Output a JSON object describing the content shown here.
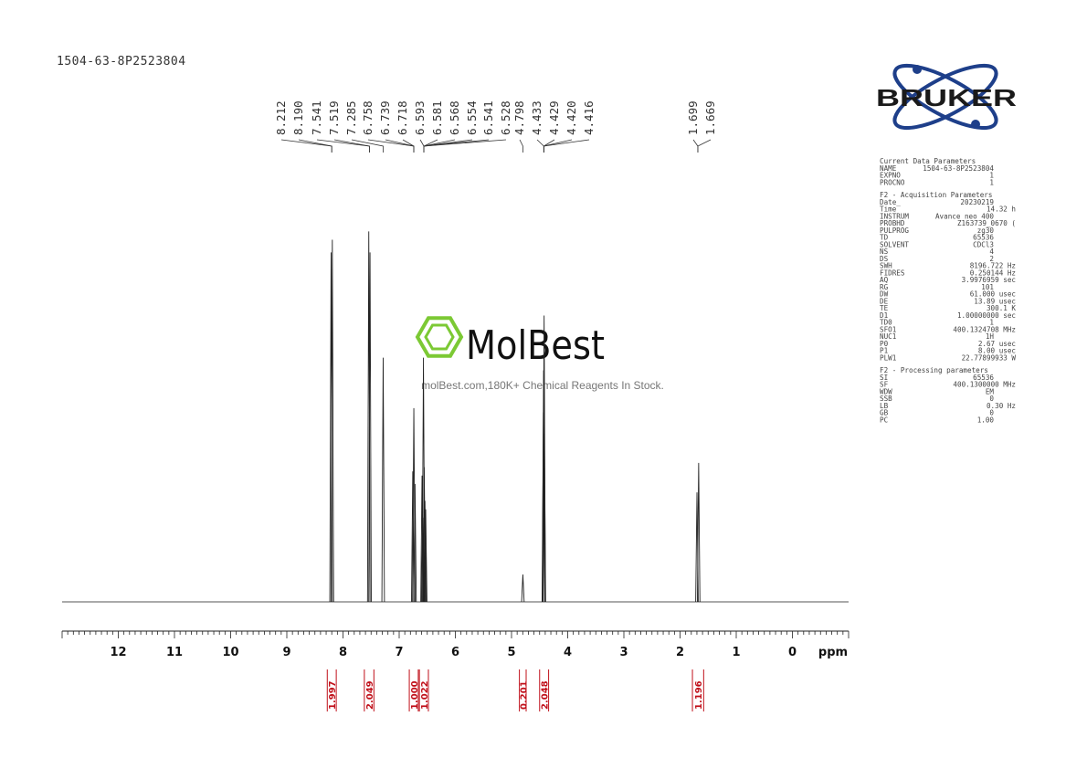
{
  "sample_id": "1504-63-8P2523804",
  "logo": {
    "bruker": "BRUKER",
    "watermark_brand": "MolBest",
    "watermark_tagline": "molBest.com,180K+ Chemical Reagents In Stock."
  },
  "params": {
    "current": [
      [
        "Current Data Parameters",
        ""
      ],
      [
        "NAME",
        "1504-63-8P2523804"
      ],
      [
        "EXPNO",
        "1"
      ],
      [
        "PROCNO",
        "1"
      ]
    ],
    "acquisition_title": "F2 - Acquisition Parameters",
    "acquisition": [
      [
        "Date_",
        "20230219"
      ],
      [
        "Time",
        "14.32 h"
      ],
      [
        "INSTRUM",
        "Avance neo 400"
      ],
      [
        "PROBHD",
        "Z163739_0670 ("
      ],
      [
        "PULPROG",
        "zg30"
      ],
      [
        "TD",
        "65536"
      ],
      [
        "SOLVENT",
        "CDCl3"
      ],
      [
        "NS",
        "4"
      ],
      [
        "DS",
        "2"
      ],
      [
        "SWH",
        "8196.722 Hz"
      ],
      [
        "FIDRES",
        "0.250144 Hz"
      ],
      [
        "AQ",
        "3.9976959 sec"
      ],
      [
        "RG",
        "101"
      ],
      [
        "DW",
        "61.000 usec"
      ],
      [
        "DE",
        "13.89 usec"
      ],
      [
        "TE",
        "300.1 K"
      ],
      [
        "D1",
        "1.00000000 sec"
      ],
      [
        "TD0",
        "1"
      ],
      [
        "SFO1",
        "400.1324708 MHz"
      ],
      [
        "NUC1",
        "1H"
      ],
      [
        "P0",
        "2.67 usec"
      ],
      [
        "P1",
        "8.00 usec"
      ],
      [
        "PLW1",
        "22.77899933 W"
      ]
    ],
    "processing_title": "F2 - Processing parameters",
    "processing": [
      [
        "SI",
        "65536"
      ],
      [
        "SF",
        "400.1300000 MHz"
      ],
      [
        "WDW",
        "EM"
      ],
      [
        "SSB",
        "0"
      ],
      [
        "LB",
        "0.30 Hz"
      ],
      [
        "GB",
        "0"
      ],
      [
        "PC",
        "1.00"
      ]
    ]
  },
  "chart_data": {
    "type": "line",
    "title": "1504-63-8P2523804",
    "xlabel": "ppm",
    "ylabel": "",
    "xlim": [
      13.0,
      -1.0
    ],
    "x_reversed": true,
    "grid": false,
    "x_ticks": [
      12,
      11,
      10,
      9,
      8,
      7,
      6,
      5,
      4,
      3,
      2,
      1,
      0
    ],
    "x_unit_label": "ppm",
    "peak_labels": [
      "8.212",
      "8.190",
      "7.541",
      "7.519",
      "7.285",
      "6.758",
      "6.739",
      "6.718",
      "6.593",
      "6.581",
      "6.568",
      "6.554",
      "6.541",
      "6.528",
      "4.798",
      "4.433",
      "4.429",
      "4.420",
      "4.416",
      "1.699",
      "1.669"
    ],
    "peak_groups": [
      {
        "labels": [
          "8.212",
          "8.190"
        ],
        "target": 8.2
      },
      {
        "labels": [
          "7.541",
          "7.519"
        ],
        "target": 7.53
      },
      {
        "labels": [
          "7.285"
        ],
        "target": 7.285
      },
      {
        "labels": [
          "6.758",
          "6.739",
          "6.718"
        ],
        "target": 6.74
      },
      {
        "labels": [
          "6.593",
          "6.581",
          "6.568",
          "6.554",
          "6.541",
          "6.528"
        ],
        "target": 6.56
      },
      {
        "labels": [
          "4.798"
        ],
        "target": 4.798
      },
      {
        "labels": [
          "4.433",
          "4.429",
          "4.420",
          "4.416"
        ],
        "target": 4.425
      },
      {
        "labels": [
          "1.699",
          "1.669"
        ],
        "target": 1.684
      }
    ],
    "peaks": [
      {
        "ppm": 8.212,
        "height": 0.83
      },
      {
        "ppm": 8.19,
        "height": 0.86
      },
      {
        "ppm": 7.541,
        "height": 0.88
      },
      {
        "ppm": 7.519,
        "height": 0.83
      },
      {
        "ppm": 7.285,
        "height": 0.58
      },
      {
        "ppm": 6.758,
        "height": 0.31
      },
      {
        "ppm": 6.739,
        "height": 0.46
      },
      {
        "ppm": 6.718,
        "height": 0.28
      },
      {
        "ppm": 6.593,
        "height": 0.3
      },
      {
        "ppm": 6.581,
        "height": 0.2
      },
      {
        "ppm": 6.568,
        "height": 0.58
      },
      {
        "ppm": 6.554,
        "height": 0.32
      },
      {
        "ppm": 6.541,
        "height": 0.24
      },
      {
        "ppm": 6.528,
        "height": 0.22
      },
      {
        "ppm": 4.798,
        "height": 0.065
      },
      {
        "ppm": 4.433,
        "height": 0.45
      },
      {
        "ppm": 4.429,
        "height": 0.55
      },
      {
        "ppm": 4.42,
        "height": 0.68
      },
      {
        "ppm": 4.416,
        "height": 0.4
      },
      {
        "ppm": 1.699,
        "height": 0.26
      },
      {
        "ppm": 1.669,
        "height": 0.33
      }
    ],
    "integrals": [
      {
        "label": "1.997",
        "from": 8.28,
        "to": 8.12
      },
      {
        "label": "2.049",
        "from": 7.62,
        "to": 7.45
      },
      {
        "label": "1.000",
        "from": 6.82,
        "to": 6.66
      },
      {
        "label": "1.022",
        "from": 6.64,
        "to": 6.48
      },
      {
        "label": "0.201",
        "from": 4.86,
        "to": 4.74
      },
      {
        "label": "2.048",
        "from": 4.5,
        "to": 4.34
      },
      {
        "label": "1.196",
        "from": 1.78,
        "to": 1.58
      }
    ]
  }
}
